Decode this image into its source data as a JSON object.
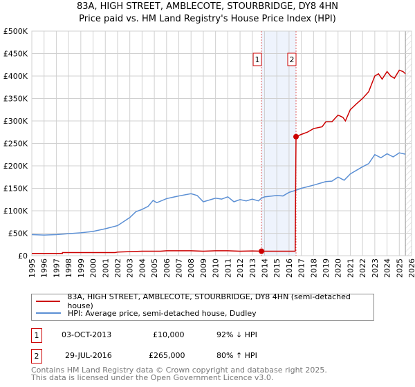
{
  "chart_data": {
    "type": "line",
    "title": "83A, HIGH STREET, AMBLECOTE, STOURBRIDGE, DY8 4HN",
    "subtitle": "Price paid vs. HM Land Registry's House Price Index (HPI)",
    "xlim": [
      1995,
      2026
    ],
    "ylim": [
      0,
      500000
    ],
    "x_ticks": [
      "1995",
      "1996",
      "1997",
      "1998",
      "1999",
      "2000",
      "2001",
      "2002",
      "2003",
      "2004",
      "2005",
      "2006",
      "2007",
      "2008",
      "2009",
      "2010",
      "2011",
      "2012",
      "2013",
      "2014",
      "2015",
      "2016",
      "2017",
      "2018",
      "2019",
      "2020",
      "2021",
      "2022",
      "2023",
      "2024",
      "2025",
      "2026"
    ],
    "y_ticks": [
      {
        "v": 0,
        "label": "£0"
      },
      {
        "v": 50000,
        "label": "£50K"
      },
      {
        "v": 100000,
        "label": "£100K"
      },
      {
        "v": 150000,
        "label": "£150K"
      },
      {
        "v": 200000,
        "label": "£200K"
      },
      {
        "v": 250000,
        "label": "£250K"
      },
      {
        "v": 300000,
        "label": "£300K"
      },
      {
        "v": 350000,
        "label": "£350K"
      },
      {
        "v": 400000,
        "label": "£400K"
      },
      {
        "v": 450000,
        "label": "£450K"
      },
      {
        "v": 500000,
        "label": "£500K"
      }
    ],
    "grid": true,
    "highlight_range": [
      2013.75,
      2016.57
    ],
    "forecast_from": 2025.5,
    "series": [
      {
        "name": "83A, HIGH STREET, AMBLECOTE, STOURBRIDGE, DY8 4HN (semi-detached house)",
        "color": "#cc0000",
        "x": [
          1995,
          1997.5,
          1997.5,
          2001.8,
          2002,
          2003,
          2004,
          2005.5,
          2006,
          2008,
          2009,
          2010,
          2011,
          2012,
          2013,
          2013.75,
          2016.5,
          2016.57,
          2017,
          2017.5,
          2018,
          2018.7,
          2019,
          2019.5,
          2020,
          2020.4,
          2020.6,
          2021,
          2021.5,
          2022,
          2022.5,
          2023,
          2023.3,
          2023.6,
          2024,
          2024.3,
          2024.6,
          2025,
          2025.3,
          2025.5
        ],
        "y": [
          5000,
          5000,
          7000,
          7000,
          8000,
          9000,
          10000,
          10000,
          11000,
          11000,
          10000,
          11000,
          11000,
          10000,
          10500,
          10000,
          10000,
          265000,
          270000,
          275000,
          283000,
          287000,
          298000,
          298000,
          313000,
          308000,
          300000,
          325000,
          338000,
          350000,
          365000,
          400000,
          405000,
          393000,
          410000,
          400000,
          395000,
          413000,
          410000,
          405000
        ]
      },
      {
        "name": "HPI: Average price, semi-detached house, Dudley",
        "color": "#5b8fd4",
        "x": [
          1995,
          1996,
          1997,
          1998,
          1999,
          2000,
          2001,
          2002,
          2003,
          2003.5,
          2004,
          2004.5,
          2004.9,
          2005.2,
          2006,
          2007,
          2008,
          2008.5,
          2009,
          2010,
          2010.5,
          2011,
          2011.5,
          2012,
          2012.5,
          2013,
          2013.5,
          2013.75,
          2014,
          2015,
          2015.5,
          2016,
          2016.6,
          2017,
          2018,
          2019,
          2019.5,
          2020,
          2020.5,
          2021,
          2022,
          2022.5,
          2023,
          2023.5,
          2024,
          2024.5,
          2025,
          2025.5
        ],
        "y": [
          47000,
          46000,
          47000,
          49000,
          51000,
          54000,
          60000,
          67000,
          85000,
          98000,
          103000,
          110000,
          123000,
          118000,
          127000,
          133000,
          138000,
          134000,
          120000,
          128000,
          126000,
          131000,
          120000,
          125000,
          122000,
          126000,
          122000,
          128000,
          131000,
          134000,
          133000,
          141000,
          146000,
          150000,
          157000,
          165000,
          166000,
          175000,
          168000,
          182000,
          198000,
          205000,
          225000,
          218000,
          227000,
          220000,
          229000,
          226000
        ]
      }
    ],
    "annotations": [
      {
        "label": "1",
        "x": 2013.75,
        "y": 10000
      },
      {
        "label": "2",
        "x": 2016.57,
        "y": 265000
      }
    ]
  },
  "legend": {
    "red": "83A, HIGH STREET, AMBLECOTE, STOURBRIDGE, DY8 4HN (semi-detached house)",
    "blue": "HPI: Average price, semi-detached house, Dudley"
  },
  "sales": [
    {
      "num": "1",
      "date": "03-OCT-2013",
      "price": "£10,000",
      "hpi": "92% ↓ HPI"
    },
    {
      "num": "2",
      "date": "29-JUL-2016",
      "price": "£265,000",
      "hpi": "80% ↑ HPI"
    }
  ],
  "footer": {
    "line1": "Contains HM Land Registry data © Crown copyright and database right 2025.",
    "line2": "This data is licensed under the Open Government Licence v3.0."
  }
}
